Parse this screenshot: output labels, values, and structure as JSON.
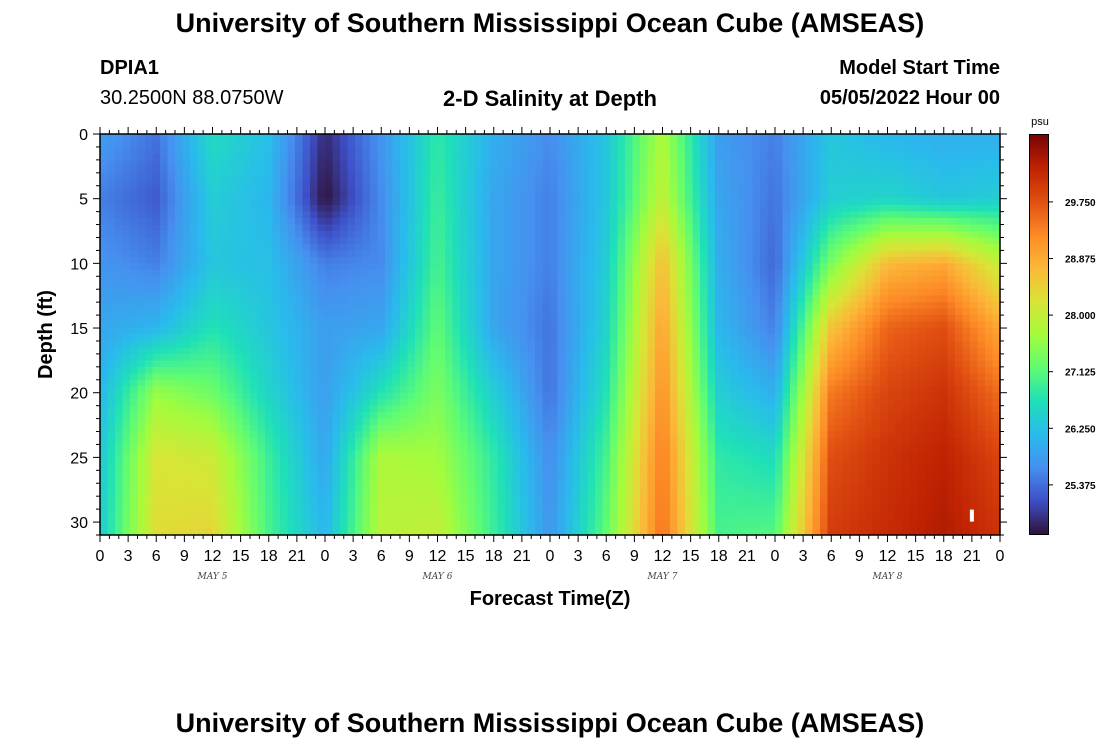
{
  "header": {
    "title": "University of Southern Mississippi Ocean Cube (AMSEAS)",
    "station_id": "DPIA1",
    "station_coords": "30.2500N  88.0750W",
    "subtitle": "2-D Salinity at Depth",
    "model_start_label": "Model Start Time",
    "model_start_value": "05/05/2022 Hour 00"
  },
  "footer": {
    "title": "University of Southern Mississippi Ocean Cube (AMSEAS)"
  },
  "colors": {
    "colormap": [
      "#30123b",
      "#3e50c8",
      "#4690ef",
      "#29bbec",
      "#1fe0b8",
      "#5ffc73",
      "#a4fc3c",
      "#d9e436",
      "#fbb838",
      "#fd8a26",
      "#e25012",
      "#c02302",
      "#7a0403"
    ]
  },
  "chart_data": {
    "type": "heatmap",
    "title": "2-D Salinity at Depth",
    "xlabel": "Forecast Time(Z)",
    "ylabel": "Depth (ft)",
    "x_unit": "hours from model start",
    "xlim": [
      0,
      96
    ],
    "ylim": [
      0,
      31
    ],
    "x_ticks": [
      0,
      3,
      6,
      9,
      12,
      15,
      18,
      21,
      24,
      27,
      30,
      33,
      36,
      39,
      42,
      45,
      48,
      51,
      54,
      57,
      60,
      63,
      66,
      69,
      72,
      75,
      78,
      81,
      84,
      87,
      90,
      93,
      96
    ],
    "x_tick_labels": [
      "0",
      "3",
      "6",
      "9",
      "12",
      "15",
      "18",
      "21",
      "0",
      "3",
      "6",
      "9",
      "12",
      "15",
      "18",
      "21",
      "0",
      "3",
      "6",
      "9",
      "12",
      "15",
      "18",
      "21",
      "0",
      "3",
      "6",
      "9",
      "12",
      "15",
      "18",
      "21",
      "0"
    ],
    "y_ticks": [
      0,
      5,
      10,
      15,
      20,
      25,
      30
    ],
    "y_tick_labels": [
      "0",
      "5",
      "10",
      "15",
      "20",
      "25",
      "30"
    ],
    "day_labels": [
      {
        "hour": 12,
        "label": "MAY 5"
      },
      {
        "hour": 36,
        "label": "MAY 6"
      },
      {
        "hour": 60,
        "label": "MAY 7"
      },
      {
        "hour": 84,
        "label": "MAY 8"
      }
    ],
    "colorbar": {
      "unit": "psu",
      "range": [
        24.6,
        30.8
      ],
      "ticks": [
        25.375,
        26.25,
        27.125,
        28.0,
        28.875,
        29.75
      ],
      "tick_labels": [
        "25.375",
        "26.250",
        "27.125",
        "28.000",
        "28.875",
        "29.750"
      ]
    },
    "field": {
      "time_hours": [
        0,
        6,
        12,
        18,
        24,
        30,
        36,
        42,
        48,
        54,
        60,
        66,
        72,
        78,
        84,
        90,
        96
      ],
      "depth_ft": [
        0,
        5,
        10,
        15,
        20,
        25,
        31
      ],
      "salinity_psu": [
        [
          25.8,
          25.4,
          26.6,
          26.2,
          24.8,
          25.7,
          26.8,
          26.0,
          25.6,
          26.3,
          27.8,
          25.8,
          25.5,
          26.3,
          26.1,
          26.0,
          26.0
        ],
        [
          25.5,
          25.2,
          26.4,
          26.1,
          24.6,
          25.6,
          26.9,
          25.9,
          25.5,
          26.3,
          28.0,
          25.9,
          25.4,
          26.4,
          26.5,
          26.3,
          26.4
        ],
        [
          25.7,
          25.5,
          26.3,
          26.2,
          25.5,
          25.6,
          27.0,
          25.9,
          25.5,
          26.4,
          28.7,
          26.0,
          25.3,
          27.4,
          28.7,
          28.9,
          28.0
        ],
        [
          25.9,
          26.1,
          26.7,
          26.3,
          25.8,
          25.9,
          27.2,
          25.9,
          25.4,
          26.5,
          29.0,
          26.1,
          25.5,
          28.6,
          29.6,
          29.8,
          28.9
        ],
        [
          26.1,
          27.6,
          27.3,
          26.5,
          25.8,
          26.7,
          27.4,
          26.4,
          25.4,
          26.7,
          29.2,
          26.4,
          26.0,
          29.4,
          29.9,
          30.1,
          29.5
        ],
        [
          26.3,
          28.2,
          28.1,
          26.9,
          25.9,
          27.8,
          27.7,
          26.8,
          25.6,
          27.0,
          29.4,
          26.8,
          26.6,
          29.8,
          30.1,
          30.3,
          29.9
        ],
        [
          26.4,
          28.3,
          28.4,
          27.0,
          26.1,
          27.9,
          28.0,
          26.9,
          25.7,
          27.2,
          29.5,
          27.0,
          27.1,
          30.0,
          30.2,
          30.4,
          30.1
        ]
      ]
    },
    "marker": {
      "hour": 93,
      "depth_ft": 29.5,
      "color": "#ffffff"
    }
  }
}
